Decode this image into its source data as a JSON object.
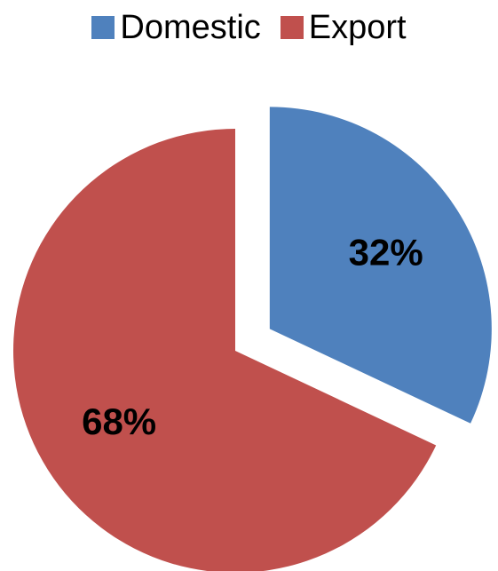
{
  "chart_data": {
    "type": "pie",
    "categories": [
      "Domestic",
      "Export"
    ],
    "values": [
      32,
      68
    ],
    "data_labels": [
      "32%",
      "68%"
    ],
    "colors": [
      "#4f81bd",
      "#c0504d"
    ],
    "exploded": [
      "Domestic"
    ],
    "title": "",
    "legend": {
      "position": "top",
      "entries": [
        "Domestic",
        "Export"
      ]
    }
  }
}
